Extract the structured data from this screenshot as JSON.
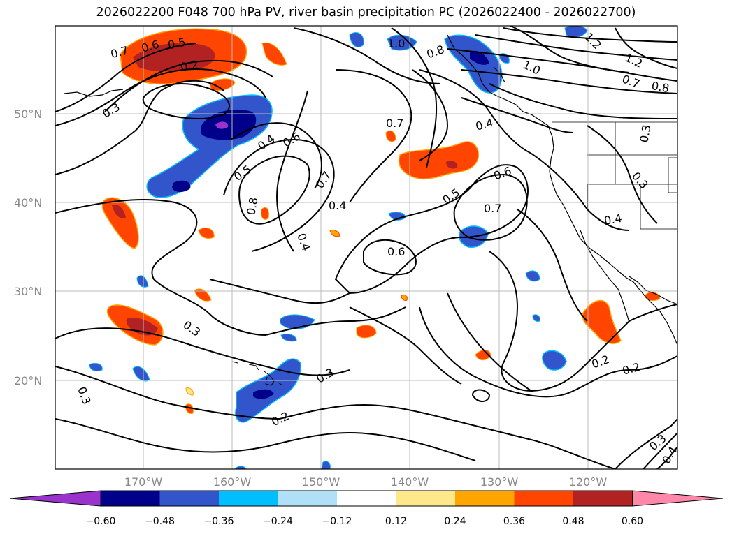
{
  "title": "2026022200 F048 700 hPa PV, river basin precipitation PC (2026022400 - 2026022700)",
  "map": {
    "lat_labels": [
      "50°N",
      "40°N",
      "30°N",
      "20°N"
    ],
    "lon_labels": [
      "170°W",
      "160°W",
      "150°W",
      "140°W",
      "130°W",
      "120°W"
    ],
    "contour_labels": [
      "0.7",
      "0.6",
      "0.5",
      "0.2",
      "0.3",
      "0.4",
      "0.6",
      "0.5",
      "0.7",
      "0.8",
      "0.4",
      "0.7",
      "0.5",
      "0.6",
      "0.7",
      "0.6",
      "0.4",
      "0.3",
      "0.3",
      "0.2",
      "0.3",
      "0.2",
      "0.2",
      "0.3",
      "0.4",
      "0.3",
      "0.4",
      "1.0",
      "0.8",
      "1.0",
      "1.2",
      "1.2",
      "0.7",
      "0.8",
      "0.4",
      "0.3"
    ],
    "pc_colors": {
      "neg_strong": "#00008b",
      "neg_mid": "#3355cc",
      "neg_light": "#00bfff",
      "neg_pale": "#b0e0f8",
      "pos_pale": "#ffe88c",
      "pos_light": "#ffa500",
      "pos_mid": "#ff4500",
      "pos_strong": "#b22222",
      "pos_extreme": "#ff88aa",
      "neg_extreme": "#9933cc"
    }
  },
  "colorbar": {
    "ticks": [
      "−0.60",
      "−0.48",
      "−0.36",
      "−0.24",
      "−0.12",
      "0.12",
      "0.24",
      "0.36",
      "0.48",
      "0.60"
    ],
    "colors": [
      "#9933cc",
      "#00008b",
      "#3355cc",
      "#00bfff",
      "#b0e0f8",
      "#ffffff",
      "#ffe88c",
      "#ffa500",
      "#ff4500",
      "#b22222",
      "#ff88aa"
    ]
  }
}
